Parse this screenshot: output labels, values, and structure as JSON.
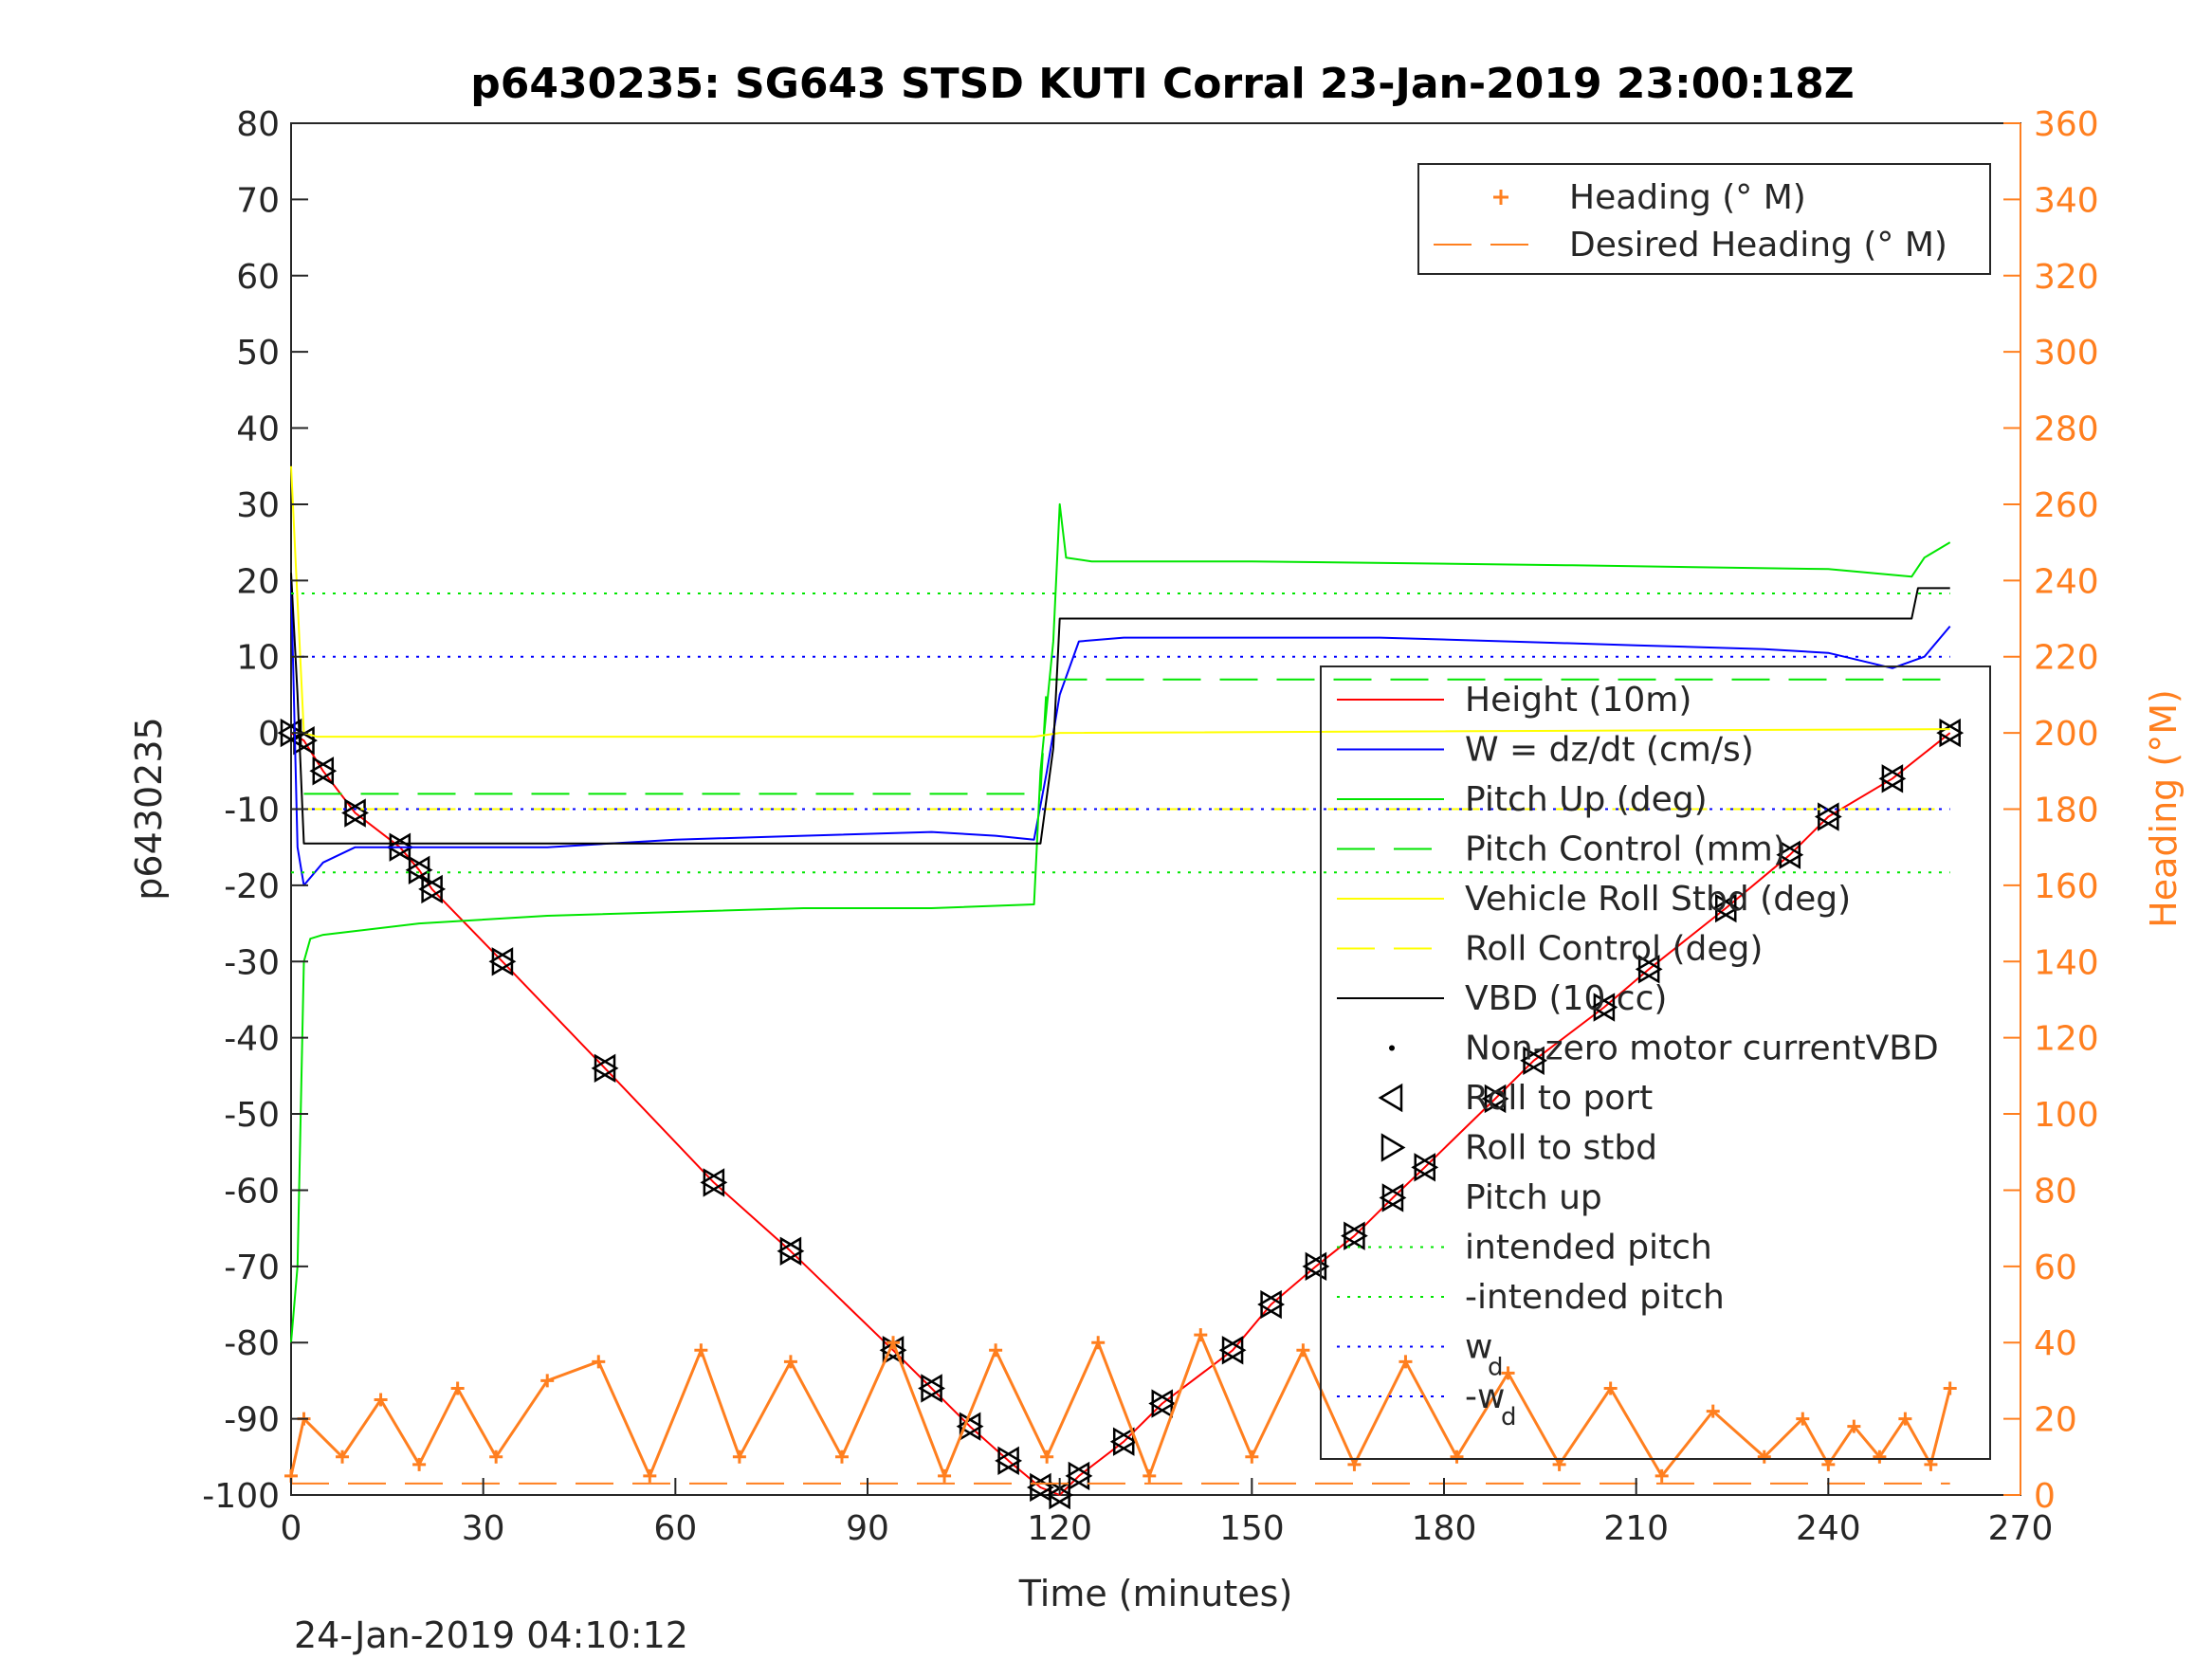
{
  "chart_data": {
    "type": "line",
    "title": "p6430235: SG643 STSD KUTI Corral 23-Jan-2019 23:00:18Z",
    "xlabel": "Time (minutes)",
    "ylabel_left": "p6430235",
    "ylabel_right": "Heading (°M)",
    "timestamp": "24-Jan-2019 04:10:12",
    "xlim": [
      0,
      270
    ],
    "ylim_left": [
      -100,
      80
    ],
    "ylim_right": [
      0,
      360
    ],
    "x_ticks": [
      "0",
      "30",
      "60",
      "90",
      "120",
      "150",
      "180",
      "210",
      "240",
      "270"
    ],
    "y_ticks_left": [
      "80",
      "70",
      "60",
      "50",
      "40",
      "30",
      "20",
      "10",
      "0",
      "-10",
      "-20",
      "-30",
      "-40",
      "-50",
      "-60",
      "-70",
      "-80",
      "-90",
      "-100"
    ],
    "y_ticks_right": [
      "360",
      "340",
      "320",
      "300",
      "280",
      "260",
      "240",
      "220",
      "200",
      "180",
      "160",
      "140",
      "120",
      "100",
      "80",
      "60",
      "40",
      "20",
      "0"
    ],
    "grid": false,
    "colors": {
      "height": "#ff0000",
      "w": "#0000ff",
      "pitch": "#00e600",
      "roll": "#ffff00",
      "vbd": "#000000",
      "heading": "#ff7f1f"
    },
    "legend_heading": {
      "placement": "top-right",
      "entries": [
        "Heading (° M)",
        "Desired Heading (° M)"
      ]
    },
    "legend_main": {
      "placement": "right",
      "entries": [
        "Height (10m)",
        "W = dz/dt (cm/s)",
        "Pitch Up (deg)",
        "Pitch Control (mm)",
        "Vehicle Roll Stbd (deg)",
        "Roll Control (deg)",
        "VBD (10 cc)",
        "Non-zero motor currentVBD",
        "Roll to port",
        "Roll to stbd",
        "Pitch up",
        "intended pitch",
        "-intended pitch",
        "w",
        "-w"
      ],
      "subscript": "d"
    },
    "series": [
      {
        "name": "Height (10m)",
        "axis": "left",
        "x": [
          0,
          2,
          5,
          10,
          17,
          20,
          22,
          33,
          49,
          66,
          78,
          94,
          100,
          106,
          112,
          117,
          120,
          123,
          130,
          136,
          147,
          153,
          160,
          166,
          172,
          177,
          188,
          194,
          205,
          212,
          224,
          234,
          240,
          250,
          259
        ],
        "y": [
          0,
          -1,
          -5,
          -10.5,
          -15,
          -18,
          -20.5,
          -30,
          -44,
          -59,
          -68,
          -81,
          -86,
          -91,
          -95.5,
          -99,
          -100,
          -97.5,
          -93,
          -88,
          -81,
          -75,
          -70,
          -66,
          -61,
          -57,
          -48,
          -43,
          -36,
          -31,
          -23,
          -16,
          -11,
          -6,
          0
        ]
      },
      {
        "name": "W = dz/dt (cm/s)",
        "axis": "left",
        "x": [
          0,
          1,
          2,
          5,
          10,
          20,
          40,
          60,
          80,
          100,
          110,
          116,
          118,
          120,
          123,
          130,
          150,
          170,
          190,
          210,
          230,
          240,
          250,
          255,
          259
        ],
        "y": [
          20,
          -15,
          -20,
          -17,
          -15,
          -15,
          -15,
          -14,
          -13.5,
          -13,
          -13.5,
          -14,
          -5,
          5,
          12,
          12.5,
          12.5,
          12.5,
          12,
          11.5,
          11,
          10.5,
          8.5,
          10,
          14
        ]
      },
      {
        "name": "Pitch Up (deg)",
        "axis": "left",
        "x": [
          0,
          1,
          2,
          3,
          5,
          10,
          20,
          40,
          60,
          80,
          100,
          116,
          117,
          119,
          120,
          121,
          125,
          150,
          200,
          240,
          253,
          255,
          259
        ],
        "y": [
          -80,
          -70,
          -30,
          -27,
          -26.5,
          -26,
          -25,
          -24,
          -23.5,
          -23,
          -23,
          -22.5,
          -5,
          12,
          30,
          23,
          22.5,
          22.5,
          22,
          21.5,
          20.5,
          23,
          25
        ]
      },
      {
        "name": "Pitch Control (mm)",
        "axis": "left",
        "x": [
          2,
          117,
          118,
          259
        ],
        "y": [
          -8,
          -8,
          7,
          7
        ]
      },
      {
        "name": "Vehicle Roll Stbd (deg)",
        "axis": "left",
        "x": [
          0,
          2,
          4,
          116,
          120,
          259
        ],
        "y": [
          35,
          0,
          -0.5,
          -0.5,
          0,
          0.5
        ]
      },
      {
        "name": "Roll Control (deg)",
        "axis": "left",
        "x": [
          2,
          259
        ],
        "y": [
          -10,
          -10
        ]
      },
      {
        "name": "VBD (10 cc)",
        "axis": "left",
        "x": [
          0,
          1,
          2,
          115,
          117,
          119,
          120,
          122,
          253,
          254,
          259
        ],
        "y": [
          21,
          5,
          -14.5,
          -14.5,
          -14.5,
          -2,
          15,
          15,
          15,
          19,
          19
        ]
      },
      {
        "name": "intended pitch",
        "axis": "left",
        "x": [
          0,
          259
        ],
        "y": [
          18.3,
          18.3
        ]
      },
      {
        "name": "-intended pitch",
        "axis": "left",
        "x": [
          0,
          259
        ],
        "y": [
          -18.3,
          -18.3
        ]
      },
      {
        "name": "w_d",
        "axis": "left",
        "x": [
          0,
          259
        ],
        "y": [
          10,
          10
        ]
      },
      {
        "name": "-w_d",
        "axis": "left",
        "x": [
          0,
          259
        ],
        "y": [
          -10,
          -10
        ]
      },
      {
        "name": "Heading (° M)",
        "axis": "right",
        "x": [
          0,
          2,
          8,
          14,
          20,
          26,
          32,
          40,
          48,
          56,
          64,
          70,
          78,
          86,
          94,
          102,
          110,
          118,
          126,
          134,
          142,
          150,
          158,
          166,
          174,
          182,
          190,
          198,
          206,
          214,
          222,
          230,
          236,
          240,
          244,
          248,
          252,
          256,
          259
        ],
        "y": [
          5,
          20,
          10,
          25,
          8,
          28,
          10,
          30,
          35,
          5,
          38,
          10,
          35,
          10,
          40,
          5,
          38,
          10,
          40,
          5,
          42,
          10,
          38,
          8,
          35,
          10,
          32,
          8,
          28,
          5,
          22,
          10,
          20,
          8,
          18,
          10,
          20,
          8,
          28
        ]
      },
      {
        "name": "Desired Heading (° M)",
        "axis": "right",
        "x": [
          0,
          259
        ],
        "y": [
          3,
          3
        ]
      }
    ]
  }
}
